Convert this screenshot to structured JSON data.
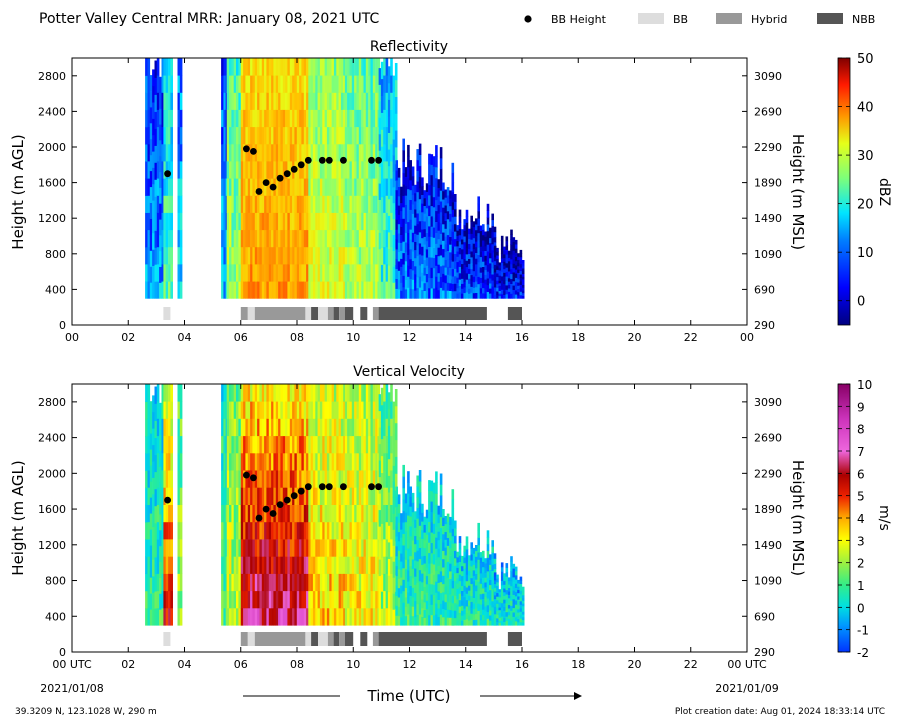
{
  "header": {
    "title": "Potter Valley Central MRR:  January 08, 2021 UTC",
    "legend": [
      {
        "label": "BB Height",
        "kind": "dot",
        "color": "#000000"
      },
      {
        "label": "BB",
        "kind": "swatch",
        "color": "#dddddd"
      },
      {
        "label": "Hybrid",
        "kind": "swatch",
        "color": "#999999"
      },
      {
        "label": "NBB",
        "kind": "swatch",
        "color": "#555555"
      }
    ]
  },
  "footer": {
    "location": "39.3209 N, 123.1028 W, 290 m",
    "created": "Plot creation date: Aug 01, 2024 18:33:14 UTC",
    "xlabel": "Time (UTC)",
    "start_date": "2021/01/08",
    "end_date": "2021/01/09"
  },
  "chart_data": [
    {
      "type": "heatmap",
      "title": "Reflectivity",
      "ylabel": "Height (m AGL)",
      "ylabel_right": "Height (m MSL)",
      "colorbar_label": "dBZ",
      "colorbar_ticks": [
        0,
        10,
        20,
        30,
        40,
        50
      ],
      "colorbar_range": [
        -5,
        50
      ],
      "xlim": [
        0,
        24
      ],
      "ylim": [
        0,
        3000
      ],
      "x_ticks": [
        "00",
        "02",
        "04",
        "06",
        "08",
        "10",
        "12",
        "14",
        "16",
        "18",
        "20",
        "22",
        "00"
      ],
      "y_ticks": [
        0,
        400,
        800,
        1200,
        1600,
        2000,
        2400,
        2800
      ],
      "y_ticks_right": [
        290,
        690,
        1090,
        1490,
        1890,
        2290,
        2690,
        3090
      ],
      "bb_height": [
        {
          "x": 3.4,
          "y": 1700
        },
        {
          "x": 6.2,
          "y": 1980
        },
        {
          "x": 6.45,
          "y": 1950
        },
        {
          "x": 6.65,
          "y": 1500
        },
        {
          "x": 6.9,
          "y": 1600
        },
        {
          "x": 7.15,
          "y": 1550
        },
        {
          "x": 7.4,
          "y": 1650
        },
        {
          "x": 7.65,
          "y": 1700
        },
        {
          "x": 7.9,
          "y": 1750
        },
        {
          "x": 8.15,
          "y": 1800
        },
        {
          "x": 8.4,
          "y": 1850
        },
        {
          "x": 8.9,
          "y": 1850
        },
        {
          "x": 9.15,
          "y": 1850
        },
        {
          "x": 9.65,
          "y": 1850
        },
        {
          "x": 10.65,
          "y": 1850
        },
        {
          "x": 10.9,
          "y": 1850
        }
      ],
      "bb_type": [
        {
          "start": 3.25,
          "end": 3.5,
          "type": "BB"
        },
        {
          "start": 6.0,
          "end": 6.25,
          "type": "Hybrid"
        },
        {
          "start": 6.25,
          "end": 6.5,
          "type": "BB"
        },
        {
          "start": 6.5,
          "end": 8.3,
          "type": "Hybrid"
        },
        {
          "start": 8.3,
          "end": 8.5,
          "type": "BB"
        },
        {
          "start": 8.5,
          "end": 8.75,
          "type": "NBB"
        },
        {
          "start": 8.75,
          "end": 9.1,
          "type": "BB"
        },
        {
          "start": 9.1,
          "end": 9.3,
          "type": "Hybrid"
        },
        {
          "start": 9.3,
          "end": 9.5,
          "type": "NBB"
        },
        {
          "start": 9.5,
          "end": 9.7,
          "type": "Hybrid"
        },
        {
          "start": 9.7,
          "end": 10.0,
          "type": "NBB"
        },
        {
          "start": 10.25,
          "end": 10.5,
          "type": "NBB"
        },
        {
          "start": 10.7,
          "end": 10.9,
          "type": "Hybrid"
        },
        {
          "start": 10.9,
          "end": 14.75,
          "type": "NBB"
        },
        {
          "start": 15.5,
          "end": 16.0,
          "type": "NBB"
        }
      ]
    },
    {
      "type": "heatmap",
      "title": "Vertical Velocity",
      "ylabel": "Height (m AGL)",
      "ylabel_right": "Height (m MSL)",
      "colorbar_label": "m/s",
      "colorbar_ticks": [
        -2,
        -1,
        0,
        1,
        2,
        3,
        4,
        5,
        6,
        7,
        8,
        9,
        10
      ],
      "colorbar_range": [
        -2,
        10
      ],
      "xlim": [
        0,
        24
      ],
      "ylim": [
        0,
        3000
      ],
      "x_ticks": [
        "00 UTC",
        "02",
        "04",
        "06",
        "08",
        "10",
        "12",
        "14",
        "16",
        "18",
        "20",
        "22",
        "00 UTC"
      ],
      "y_ticks": [
        0,
        400,
        800,
        1200,
        1600,
        2000,
        2400,
        2800
      ],
      "y_ticks_right": [
        290,
        690,
        1090,
        1490,
        1890,
        2290,
        2690,
        3090
      ],
      "bb_height": [
        {
          "x": 3.4,
          "y": 1700
        },
        {
          "x": 6.2,
          "y": 1980
        },
        {
          "x": 6.45,
          "y": 1950
        },
        {
          "x": 6.65,
          "y": 1500
        },
        {
          "x": 6.9,
          "y": 1600
        },
        {
          "x": 7.15,
          "y": 1550
        },
        {
          "x": 7.4,
          "y": 1650
        },
        {
          "x": 7.65,
          "y": 1700
        },
        {
          "x": 7.9,
          "y": 1750
        },
        {
          "x": 8.15,
          "y": 1800
        },
        {
          "x": 8.4,
          "y": 1850
        },
        {
          "x": 8.9,
          "y": 1850
        },
        {
          "x": 9.15,
          "y": 1850
        },
        {
          "x": 9.65,
          "y": 1850
        },
        {
          "x": 10.65,
          "y": 1850
        },
        {
          "x": 10.9,
          "y": 1850
        }
      ],
      "bb_type": [
        {
          "start": 3.25,
          "end": 3.5,
          "type": "BB"
        },
        {
          "start": 6.0,
          "end": 6.25,
          "type": "Hybrid"
        },
        {
          "start": 6.25,
          "end": 6.5,
          "type": "BB"
        },
        {
          "start": 6.5,
          "end": 8.3,
          "type": "Hybrid"
        },
        {
          "start": 8.3,
          "end": 8.5,
          "type": "BB"
        },
        {
          "start": 8.5,
          "end": 8.75,
          "type": "NBB"
        },
        {
          "start": 8.75,
          "end": 9.1,
          "type": "BB"
        },
        {
          "start": 9.1,
          "end": 9.3,
          "type": "Hybrid"
        },
        {
          "start": 9.3,
          "end": 9.5,
          "type": "NBB"
        },
        {
          "start": 9.5,
          "end": 9.7,
          "type": "Hybrid"
        },
        {
          "start": 9.7,
          "end": 10.0,
          "type": "NBB"
        },
        {
          "start": 10.25,
          "end": 10.5,
          "type": "NBB"
        },
        {
          "start": 10.7,
          "end": 10.9,
          "type": "Hybrid"
        },
        {
          "start": 10.9,
          "end": 14.75,
          "type": "NBB"
        },
        {
          "start": 15.5,
          "end": 16.0,
          "type": "NBB"
        }
      ]
    }
  ]
}
